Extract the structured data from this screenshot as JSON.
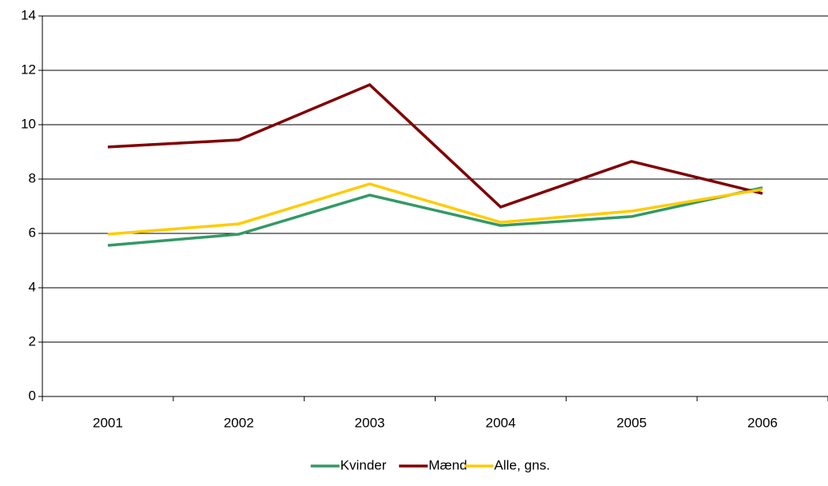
{
  "chart_data": {
    "type": "line",
    "categories": [
      "2001",
      "2002",
      "2003",
      "2004",
      "2005",
      "2006"
    ],
    "series": [
      {
        "name": "Kvinder",
        "color": "#339966",
        "values": [
          5.56,
          5.97,
          7.41,
          6.29,
          6.62,
          7.68
        ]
      },
      {
        "name": "Mænd",
        "color": "#800000",
        "values": [
          9.18,
          9.44,
          11.47,
          6.97,
          8.65,
          7.47
        ]
      },
      {
        "name": "Alle, gns.",
        "color": "#ffcc00",
        "values": [
          5.97,
          6.35,
          7.82,
          6.41,
          6.82,
          7.62
        ]
      }
    ],
    "ylim": [
      0,
      14
    ],
    "yticks": [
      0,
      2,
      4,
      6,
      8,
      10,
      12,
      14
    ],
    "grid": true,
    "legend": "bottom"
  }
}
